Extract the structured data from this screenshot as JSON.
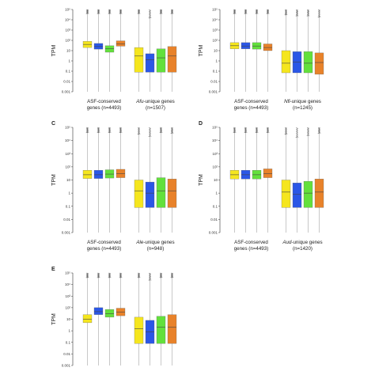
{
  "colors": {
    "yellow": "#f5e61e",
    "blue": "#2b57e6",
    "green": "#63e03c",
    "orange": "#e8822a"
  },
  "chart_data": [
    {
      "type": "box",
      "panel": "A",
      "show_letter": false,
      "ylabel": "TPM",
      "yscale": "log",
      "ylim": [
        0.001,
        100000
      ],
      "yticks": [
        "0.001",
        "0.01",
        "0.1",
        "1",
        "10",
        "10²",
        "10³",
        "10⁴",
        "10⁵"
      ],
      "groups": [
        {
          "label_lines": [
            [
              {
                "t": "ASF-conserved"
              }
            ],
            [
              {
                "t": "genes (n=4493)"
              }
            ]
          ],
          "boxes": [
            {
              "q1": 20,
              "med": 40,
              "q3": 80
            },
            {
              "q1": 14,
              "med": 25,
              "q3": 50
            },
            {
              "q1": 7,
              "med": 15,
              "q3": 30
            },
            {
              "q1": 27,
              "med": 45,
              "q3": 90
            }
          ]
        },
        {
          "label_lines": [
            [
              {
                "t": "Afu",
                "i": true
              },
              {
                "t": "-unique genes"
              }
            ],
            [
              {
                "t": "(n=1507)"
              }
            ]
          ],
          "boxes": [
            {
              "q1": 0.08,
              "med": 3,
              "q3": 20
            },
            {
              "q1": 0.08,
              "med": 1.3,
              "q3": 5
            },
            {
              "q1": 0.08,
              "med": 2,
              "q3": 15
            },
            {
              "q1": 0.08,
              "med": 3,
              "q3": 25
            }
          ]
        }
      ]
    },
    {
      "type": "box",
      "panel": "B",
      "show_letter": false,
      "ylabel": "TPM",
      "yscale": "log",
      "ylim": [
        0.001,
        100000
      ],
      "yticks": [
        "0.001",
        "0.01",
        "0.1",
        "1",
        "10",
        "10²",
        "10³",
        "10⁴",
        "10⁵"
      ],
      "groups": [
        {
          "label_lines": [
            [
              {
                "t": "ASF-conserved"
              }
            ],
            [
              {
                "t": "genes (n=4493)"
              }
            ]
          ],
          "boxes": [
            {
              "q1": 15,
              "med": 30,
              "q3": 60
            },
            {
              "q1": 15,
              "med": 28,
              "q3": 60
            },
            {
              "q1": 14,
              "med": 28,
              "q3": 60
            },
            {
              "q1": 10,
              "med": 20,
              "q3": 45
            }
          ]
        },
        {
          "label_lines": [
            [
              {
                "t": "Nfi",
                "i": true
              },
              {
                "t": "-unique genes"
              }
            ],
            [
              {
                "t": "(n=1245)"
              }
            ]
          ],
          "boxes": [
            {
              "q1": 0.07,
              "med": 0.6,
              "q3": 10
            },
            {
              "q1": 0.07,
              "med": 0.8,
              "q3": 8
            },
            {
              "q1": 0.07,
              "med": 0.6,
              "q3": 8
            },
            {
              "q1": 0.05,
              "med": 0.7,
              "q3": 6
            }
          ]
        }
      ]
    },
    {
      "type": "box",
      "panel": "C",
      "show_letter": true,
      "ylabel": "TPM",
      "yscale": "log",
      "ylim": [
        0.001,
        100000
      ],
      "yticks": [
        "0.001",
        "0.01",
        "0.1",
        "1",
        "10",
        "10²",
        "10³",
        "10⁴",
        "10⁵"
      ],
      "groups": [
        {
          "label_lines": [
            [
              {
                "t": "ASF-conserved"
              }
            ],
            [
              {
                "t": "genes (n=4493)"
              }
            ]
          ],
          "boxes": [
            {
              "q1": 13,
              "med": 25,
              "q3": 55
            },
            {
              "q1": 13,
              "med": 25,
              "q3": 55
            },
            {
              "q1": 14,
              "med": 28,
              "q3": 60
            },
            {
              "q1": 15,
              "med": 30,
              "q3": 65
            }
          ]
        },
        {
          "label_lines": [
            [
              {
                "t": "Ale",
                "i": true
              },
              {
                "t": "-unique genes"
              }
            ],
            [
              {
                "t": "(n=948)"
              }
            ]
          ],
          "boxes": [
            {
              "q1": 0.08,
              "med": 1.5,
              "q3": 10
            },
            {
              "q1": 0.08,
              "med": 1,
              "q3": 7
            },
            {
              "q1": 0.08,
              "med": 1.5,
              "q3": 15
            },
            {
              "q1": 0.08,
              "med": 1.5,
              "q3": 12
            }
          ]
        }
      ]
    },
    {
      "type": "box",
      "panel": "D",
      "show_letter": true,
      "ylabel": "TPM",
      "yscale": "log",
      "ylim": [
        0.001,
        100000
      ],
      "yticks": [
        "0.001",
        "0.01",
        "0.1",
        "1",
        "10",
        "10²",
        "10³",
        "10⁴",
        "10⁵"
      ],
      "groups": [
        {
          "label_lines": [
            [
              {
                "t": "ASF-conserved"
              }
            ],
            [
              {
                "t": "genes (n=4493)"
              }
            ]
          ],
          "boxes": [
            {
              "q1": 12,
              "med": 25,
              "q3": 55
            },
            {
              "q1": 12,
              "med": 25,
              "q3": 55
            },
            {
              "q1": 12,
              "med": 25,
              "q3": 55
            },
            {
              "q1": 15,
              "med": 30,
              "q3": 70
            }
          ]
        },
        {
          "label_lines": [
            [
              {
                "t": "Aud",
                "i": true
              },
              {
                "t": "-unique genes"
              }
            ],
            [
              {
                "t": "(n=1420)"
              }
            ]
          ],
          "boxes": [
            {
              "q1": 0.08,
              "med": 1.2,
              "q3": 10
            },
            {
              "q1": 0.08,
              "med": 0.8,
              "q3": 6
            },
            {
              "q1": 0.08,
              "med": 1,
              "q3": 8
            },
            {
              "q1": 0.08,
              "med": 1.2,
              "q3": 12
            }
          ]
        }
      ]
    },
    {
      "type": "box",
      "panel": "E",
      "show_letter": true,
      "ylabel": "TPM",
      "yscale": "log",
      "ylim": [
        0.001,
        100000
      ],
      "yticks": [
        "0.001",
        "0.01",
        "0.1",
        "1",
        "10",
        "10²",
        "10³",
        "10⁴",
        "10⁵"
      ],
      "groups": [
        {
          "label_lines": [],
          "boxes": [
            {
              "q1": 5,
              "med": 10,
              "q3": 25
            },
            {
              "q1": 25,
              "med": 45,
              "q3": 100
            },
            {
              "q1": 15,
              "med": 30,
              "q3": 70
            },
            {
              "q1": 20,
              "med": 40,
              "q3": 90
            }
          ]
        },
        {
          "label_lines": [],
          "boxes": [
            {
              "q1": 0.08,
              "med": 1.5,
              "q3": 15
            },
            {
              "q1": 0.08,
              "med": 0.8,
              "q3": 8
            },
            {
              "q1": 0.08,
              "med": 2,
              "q3": 18
            },
            {
              "q1": 0.08,
              "med": 2,
              "q3": 25
            }
          ]
        }
      ]
    }
  ]
}
